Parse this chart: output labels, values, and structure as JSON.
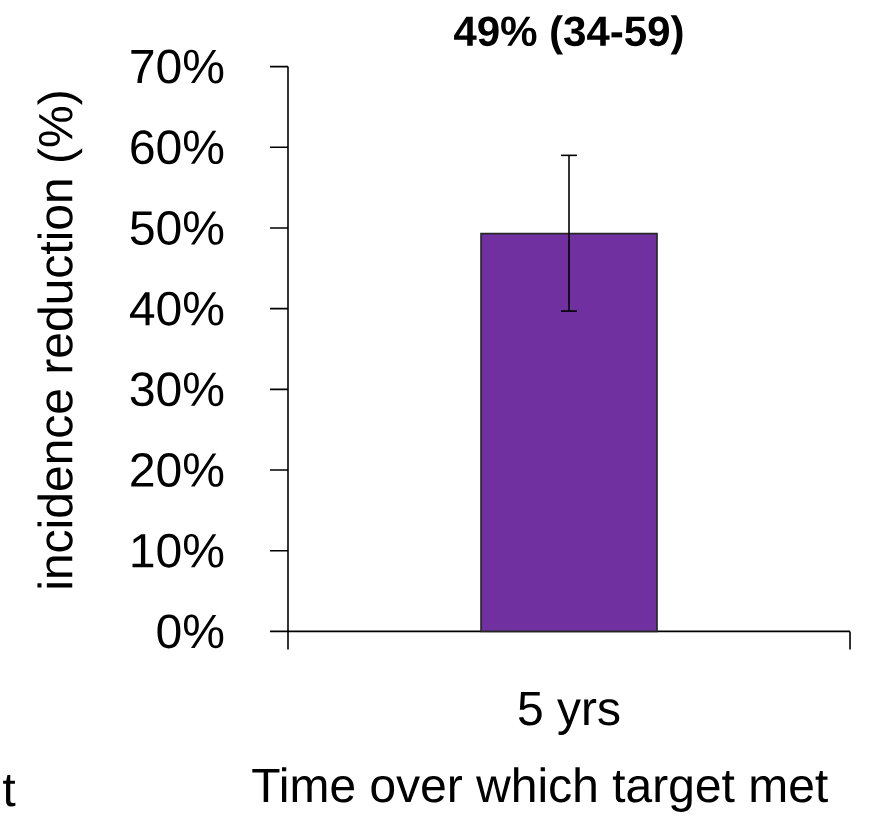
{
  "chart_data": {
    "type": "bar",
    "title": "**49% (34-59)**",
    "categories": [
      "5 yrs"
    ],
    "values": [
      49.3
    ],
    "errors": [
      [
        39.7,
        59
      ]
    ],
    "color": "#7030a0",
    "xlabel": "Time over which target met",
    "ylabel": "incidence reduction (%)",
    "ylim": [
      0,
      70
    ],
    "yticks": [
      {
        "value": 0,
        "label": "0%"
      },
      {
        "value": 10,
        "label": "10%"
      },
      {
        "value": 20,
        "label": "20%"
      },
      {
        "value": 30,
        "label": "30%"
      },
      {
        "value": 40,
        "label": "40%"
      },
      {
        "value": 50,
        "label": "50%"
      },
      {
        "value": 60,
        "label": "60%"
      },
      {
        "value": 70,
        "label": "70%"
      }
    ],
    "annotations": [
      "t"
    ]
  }
}
